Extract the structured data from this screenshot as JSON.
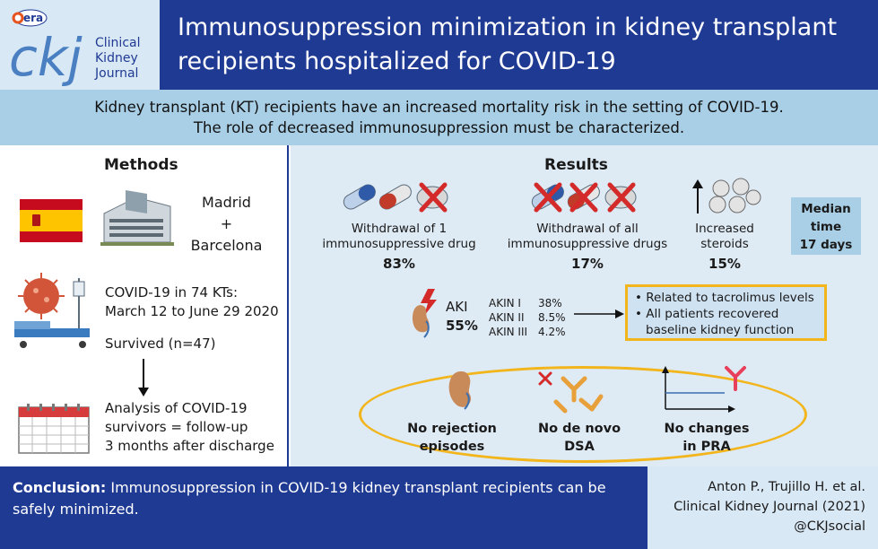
{
  "header": {
    "logo_badge": "era",
    "logo_letters": "ckj",
    "journal_lines": [
      "Clinical",
      "Kidney",
      "Journal"
    ],
    "title_line1": "Immunosuppression minimization in kidney transplant",
    "title_line2": "recipients hospitalized for COVID-19"
  },
  "intro": {
    "line1": "Kidney transplant (KT) recipients have an increased mortality risk in the setting of COVID-19.",
    "line2": "The role of decreased immunosuppression must be characterized."
  },
  "methods": {
    "title": "Methods",
    "city1": "Madrid",
    "plus": "+",
    "city2": "Barcelona",
    "cohort_line1": "COVID-19 in 74 KTs:",
    "cohort_line2": "March 12 to June 29 2020",
    "survived": "Survived (n=47)",
    "analysis_line1": "Analysis of COVID-19",
    "analysis_line2": "survivors = follow-up",
    "analysis_line3": "3 months after discharge"
  },
  "results": {
    "title": "Results",
    "withdraw_one_line1": "Withdrawal of 1",
    "withdraw_one_line2": "immunosuppressive drug",
    "withdraw_one_pct": "83%",
    "withdraw_all_line1": "Withdrawal of all",
    "withdraw_all_line2": "immunosuppressive drugs",
    "withdraw_all_pct": "17%",
    "steroid_line1": "Increased",
    "steroid_line2": "steroids",
    "steroid_pct": "15%",
    "median_line1": "Median",
    "median_line2": "time",
    "median_line3": "17 days",
    "aki_label": "AKI",
    "aki_pct": "55%",
    "akin": [
      {
        "stage": "AKIN I",
        "value": "38%"
      },
      {
        "stage": "AKIN II",
        "value": "8.5%"
      },
      {
        "stage": "AKIN III",
        "value": "4.2%"
      }
    ],
    "box_items": [
      "• Related to tacrolimus levels",
      "• All patients recovered",
      "baseline kidney function"
    ],
    "no_rejection_line1": "No rejection",
    "no_rejection_line2": "episodes",
    "no_dsa_line1": "No de novo",
    "no_dsa_line2": "DSA",
    "no_pra_line1": "No changes",
    "no_pra_line2": "in PRA"
  },
  "footer": {
    "conclusion_label": "Conclusion:",
    "conclusion_text": " Immunosuppression in COVID-19 kidney transplant recipients can be safely minimized.",
    "cite_line1": "Anton P., Trujillo H. et al.",
    "cite_line2": "Clinical Kidney Journal (2021)",
    "cite_line3": "@CKJsocial"
  },
  "colors": {
    "navy": "#1f3a93",
    "light_blue": "#a9cfe6",
    "pale_blue": "#deeaf4",
    "gold": "#f2b51c",
    "red": "#d42a2a"
  }
}
